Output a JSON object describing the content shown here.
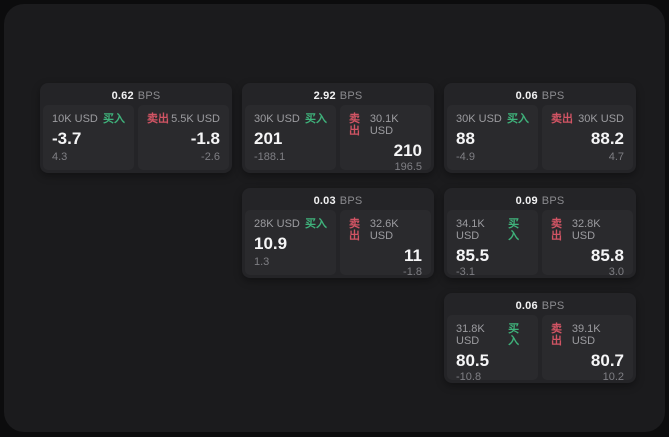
{
  "labels": {
    "bps_unit": "BPS",
    "buy": "买入",
    "sell": "卖出"
  },
  "colors": {
    "buy": "#3fb27b",
    "sell": "#d15464",
    "background": "#0c0c0d",
    "window": "#1b1b1d",
    "card": "#242427",
    "panel": "#2a2a2d"
  },
  "cards": [
    {
      "bps": "0.62",
      "grid": {
        "row": 1,
        "col": 1
      },
      "buy": {
        "amount": "10K USD",
        "value": "-3.7",
        "change": "4.3"
      },
      "sell": {
        "amount": "5.5K USD",
        "value": "-1.8",
        "change": "-2.6"
      }
    },
    {
      "bps": "2.92",
      "grid": {
        "row": 1,
        "col": 2
      },
      "buy": {
        "amount": "30K USD",
        "value": "201",
        "change": "-188.1"
      },
      "sell": {
        "amount": "30.1K USD",
        "value": "210",
        "change": "196.5"
      }
    },
    {
      "bps": "0.06",
      "grid": {
        "row": 1,
        "col": 3
      },
      "buy": {
        "amount": "30K USD",
        "value": "88",
        "change": "-4.9"
      },
      "sell": {
        "amount": "30K USD",
        "value": "88.2",
        "change": "4.7"
      }
    },
    {
      "bps": "0.03",
      "grid": {
        "row": 2,
        "col": 2
      },
      "buy": {
        "amount": "28K USD",
        "value": "10.9",
        "change": "1.3"
      },
      "sell": {
        "amount": "32.6K USD",
        "value": "11",
        "change": "-1.8"
      }
    },
    {
      "bps": "0.09",
      "grid": {
        "row": 2,
        "col": 3
      },
      "buy": {
        "amount": "34.1K USD",
        "value": "85.5",
        "change": "-3.1"
      },
      "sell": {
        "amount": "32.8K USD",
        "value": "85.8",
        "change": "3.0"
      }
    },
    {
      "bps": "0.06",
      "grid": {
        "row": 3,
        "col": 3
      },
      "buy": {
        "amount": "31.8K USD",
        "value": "80.5",
        "change": "-10.8"
      },
      "sell": {
        "amount": "39.1K USD",
        "value": "80.7",
        "change": "10.2"
      }
    }
  ]
}
